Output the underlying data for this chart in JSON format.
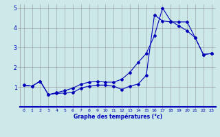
{
  "xlabel": "Graphe des températures (°c)",
  "xlim": [
    -0.5,
    23.5
  ],
  "ylim": [
    0,
    5.2
  ],
  "xticks": [
    0,
    1,
    2,
    3,
    4,
    5,
    6,
    7,
    8,
    9,
    10,
    11,
    12,
    13,
    14,
    15,
    16,
    17,
    18,
    19,
    20,
    21,
    22,
    23
  ],
  "yticks": [
    1,
    2,
    3,
    4,
    5
  ],
  "bg_color": "#cce8e8",
  "line_color": "#0000bb",
  "grid_color": "#999999",
  "line1_x": [
    0,
    1,
    2,
    3,
    4,
    5,
    6,
    7,
    8,
    9,
    10,
    11,
    12,
    13,
    14,
    15,
    16,
    17,
    18,
    19,
    20,
    21,
    22,
    23
  ],
  "line1_y": [
    1.1,
    1.05,
    1.3,
    0.62,
    0.68,
    0.7,
    0.72,
    0.95,
    1.05,
    1.1,
    1.1,
    1.05,
    0.88,
    1.05,
    1.15,
    1.6,
    4.65,
    4.35,
    4.3,
    4.3,
    4.3,
    3.5,
    2.65,
    2.7
  ],
  "line2_x": [
    0,
    1,
    2,
    3,
    4,
    5,
    6,
    7,
    8,
    9,
    10,
    11,
    12,
    13,
    14,
    15,
    16,
    17,
    18,
    19,
    20,
    21,
    22,
    23
  ],
  "line2_y": [
    1.1,
    1.05,
    1.3,
    0.62,
    0.72,
    0.82,
    0.95,
    1.15,
    1.25,
    1.3,
    1.25,
    1.25,
    1.4,
    1.75,
    2.25,
    2.7,
    3.6,
    5.0,
    4.35,
    4.1,
    3.85,
    3.5,
    2.65,
    2.7
  ]
}
